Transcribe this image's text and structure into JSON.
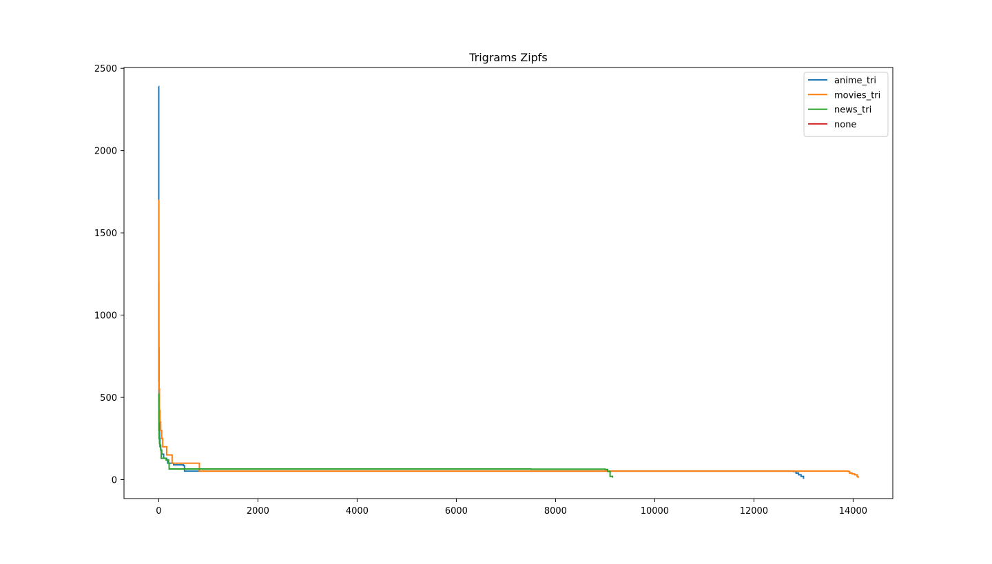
{
  "chart_data": {
    "type": "line",
    "title": "Trigrams Zipfs",
    "xlabel": "",
    "ylabel": "",
    "xlim": [
      -700,
      14800
    ],
    "ylim": [
      -115,
      2505
    ],
    "xticks": [
      0,
      2000,
      4000,
      6000,
      8000,
      10000,
      12000,
      14000
    ],
    "yticks": [
      0,
      500,
      1000,
      1500,
      2000,
      2500
    ],
    "grid": false,
    "legend_position": "top-right",
    "series": [
      {
        "name": "anime_tri",
        "color": "#1f77b4",
        "points": [
          [
            0,
            2390
          ],
          [
            1,
            1700
          ],
          [
            2,
            900
          ],
          [
            3,
            600
          ],
          [
            5,
            450
          ],
          [
            8,
            350
          ],
          [
            12,
            290
          ],
          [
            18,
            250
          ],
          [
            25,
            210
          ],
          [
            40,
            180
          ],
          [
            60,
            155
          ],
          [
            100,
            130
          ],
          [
            160,
            120
          ],
          [
            180,
            100
          ],
          [
            300,
            90
          ],
          [
            500,
            85
          ],
          [
            520,
            52
          ],
          [
            12800,
            50
          ],
          [
            12850,
            40
          ],
          [
            12900,
            30
          ],
          [
            12950,
            20
          ],
          [
            13000,
            5
          ]
        ]
      },
      {
        "name": "movies_tri",
        "color": "#ff7f0e",
        "points": [
          [
            0,
            1700
          ],
          [
            2,
            1200
          ],
          [
            4,
            800
          ],
          [
            8,
            550
          ],
          [
            15,
            420
          ],
          [
            25,
            350
          ],
          [
            40,
            300
          ],
          [
            60,
            250
          ],
          [
            80,
            200
          ],
          [
            150,
            200
          ],
          [
            160,
            150
          ],
          [
            260,
            150
          ],
          [
            270,
            100
          ],
          [
            800,
            100
          ],
          [
            820,
            52
          ],
          [
            13900,
            50
          ],
          [
            13930,
            40
          ],
          [
            13980,
            35
          ],
          [
            14030,
            30
          ],
          [
            14080,
            20
          ],
          [
            14100,
            10
          ]
        ]
      },
      {
        "name": "news_tri",
        "color": "#2ca02c",
        "points": [
          [
            0,
            520
          ],
          [
            3,
            300
          ],
          [
            8,
            250
          ],
          [
            15,
            220
          ],
          [
            25,
            200
          ],
          [
            40,
            180
          ],
          [
            50,
            130
          ],
          [
            150,
            120
          ],
          [
            200,
            100
          ],
          [
            210,
            65
          ],
          [
            3600,
            65
          ],
          [
            7500,
            64
          ],
          [
            9000,
            62
          ],
          [
            9050,
            50
          ],
          [
            9100,
            20
          ],
          [
            9150,
            12
          ]
        ]
      },
      {
        "name": "none",
        "color": "#d62728",
        "points": []
      }
    ]
  }
}
